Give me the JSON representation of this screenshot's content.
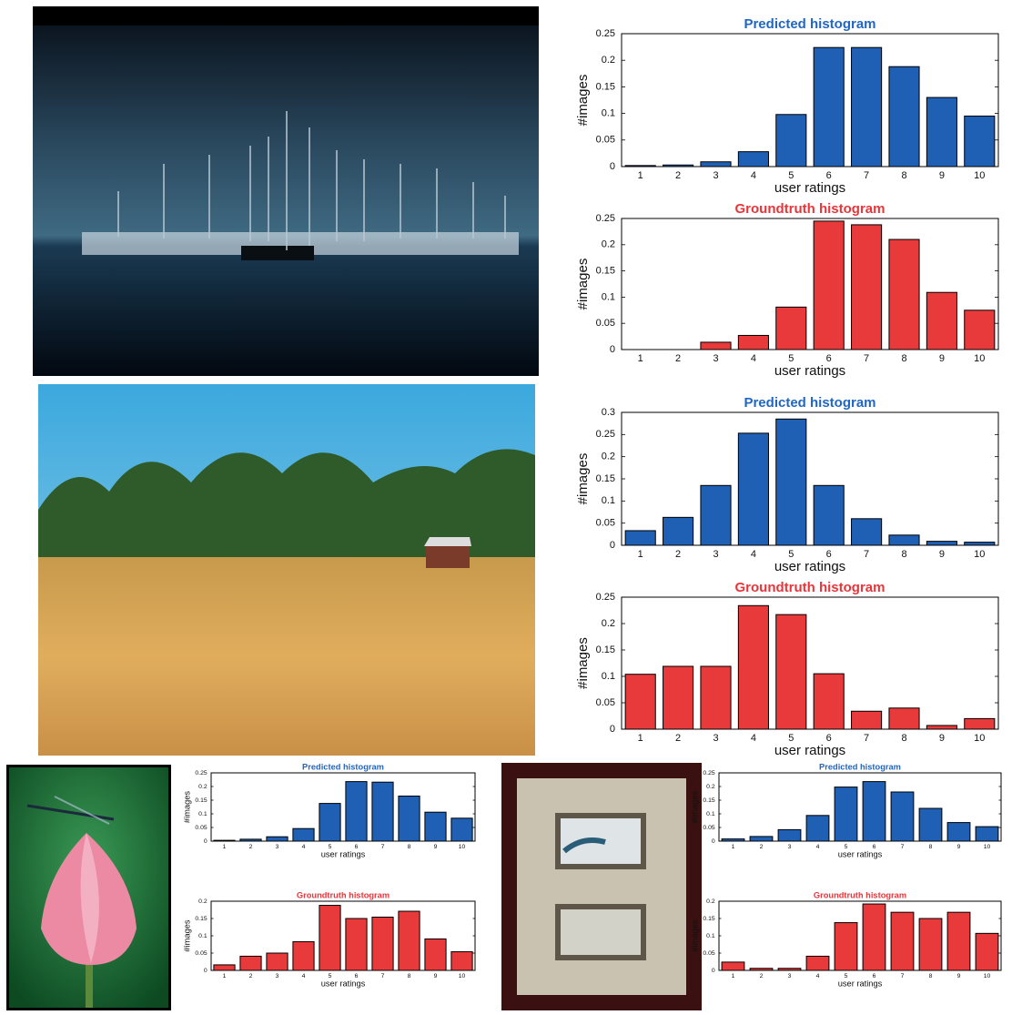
{
  "chart_data": [
    {
      "type": "bar",
      "title": "Predicted histogram",
      "xlabel": "user ratings",
      "ylabel": "#images",
      "color": "#1f5fb4",
      "title_color": "#2266c4",
      "categories": [
        1,
        2,
        3,
        4,
        5,
        6,
        7,
        8,
        9,
        10
      ],
      "values": [
        0.002,
        0.003,
        0.009,
        0.028,
        0.098,
        0.224,
        0.224,
        0.188,
        0.13,
        0.095
      ],
      "ylim": [
        0,
        0.25
      ],
      "yticks": [
        0,
        0.05,
        0.1,
        0.15,
        0.2,
        0.25
      ]
    },
    {
      "type": "bar",
      "title": "Groundtruth histogram",
      "xlabel": "user ratings",
      "ylabel": "#images",
      "color": "#e8393b",
      "title_color": "#e8353a",
      "categories": [
        1,
        2,
        3,
        4,
        5,
        6,
        7,
        8,
        9,
        10
      ],
      "values": [
        0,
        0,
        0.014,
        0.027,
        0.081,
        0.245,
        0.238,
        0.21,
        0.109,
        0.075
      ],
      "ylim": [
        0,
        0.25
      ],
      "yticks": [
        0,
        0.05,
        0.1,
        0.15,
        0.2,
        0.25
      ]
    },
    {
      "type": "bar",
      "title": "Predicted histogram",
      "xlabel": "user ratings",
      "ylabel": "#images",
      "color": "#1f5fb4",
      "title_color": "#2266c4",
      "categories": [
        1,
        2,
        3,
        4,
        5,
        6,
        7,
        8,
        9,
        10
      ],
      "values": [
        0.033,
        0.063,
        0.135,
        0.253,
        0.285,
        0.135,
        0.06,
        0.023,
        0.009,
        0.007
      ],
      "ylim": [
        0,
        0.3
      ],
      "yticks": [
        0,
        0.05,
        0.1,
        0.15,
        0.2,
        0.25,
        0.3
      ]
    },
    {
      "type": "bar",
      "title": "Groundtruth histogram",
      "xlabel": "user ratings",
      "ylabel": "#images",
      "color": "#e8393b",
      "title_color": "#e8353a",
      "categories": [
        1,
        2,
        3,
        4,
        5,
        6,
        7,
        8,
        9,
        10
      ],
      "values": [
        0.104,
        0.119,
        0.119,
        0.234,
        0.217,
        0.105,
        0.034,
        0.04,
        0.007,
        0.02
      ],
      "ylim": [
        0,
        0.25
      ],
      "yticks": [
        0,
        0.05,
        0.1,
        0.15,
        0.2,
        0.25
      ]
    },
    {
      "type": "bar",
      "title": "Predicted histogram",
      "xlabel": "user ratings",
      "ylabel": "#images",
      "color": "#1f5fb4",
      "title_color": "#2266c4",
      "categories": [
        1,
        2,
        3,
        4,
        5,
        6,
        7,
        8,
        9,
        10
      ],
      "values": [
        0.003,
        0.007,
        0.016,
        0.046,
        0.138,
        0.218,
        0.216,
        0.165,
        0.106,
        0.084
      ],
      "ylim": [
        0,
        0.25
      ],
      "yticks": [
        0,
        0.05,
        0.1,
        0.15,
        0.2,
        0.25
      ]
    },
    {
      "type": "bar",
      "title": "Groundtruth histogram",
      "xlabel": "user ratings",
      "ylabel": "#images",
      "color": "#e8393b",
      "title_color": "#e8353a",
      "categories": [
        1,
        2,
        3,
        4,
        5,
        6,
        7,
        8,
        9,
        10
      ],
      "values": [
        0.016,
        0.041,
        0.05,
        0.083,
        0.188,
        0.15,
        0.154,
        0.171,
        0.091,
        0.054
      ],
      "ylim": [
        0,
        0.2
      ],
      "yticks": [
        0,
        0.05,
        0.1,
        0.15,
        0.2
      ]
    },
    {
      "type": "bar",
      "title": "Predicted histogram",
      "xlabel": "user ratings",
      "ylabel": "#images",
      "color": "#1f5fb4",
      "title_color": "#2266c4",
      "categories": [
        1,
        2,
        3,
        4,
        5,
        6,
        7,
        8,
        9,
        10
      ],
      "values": [
        0.008,
        0.017,
        0.042,
        0.094,
        0.198,
        0.218,
        0.18,
        0.12,
        0.068,
        0.053
      ],
      "ylim": [
        0,
        0.25
      ],
      "yticks": [
        0,
        0.05,
        0.1,
        0.15,
        0.2,
        0.25
      ]
    },
    {
      "type": "bar",
      "title": "Groundtruth histogram",
      "xlabel": "user ratings",
      "ylabel": "#images",
      "color": "#e8393b",
      "title_color": "#e8353a",
      "categories": [
        1,
        2,
        3,
        4,
        5,
        6,
        7,
        8,
        9,
        10
      ],
      "values": [
        0.024,
        0.006,
        0.006,
        0.041,
        0.138,
        0.192,
        0.168,
        0.15,
        0.168,
        0.107
      ],
      "ylim": [
        0,
        0.2
      ],
      "yticks": [
        0,
        0.05,
        0.1,
        0.15,
        0.2
      ]
    }
  ]
}
